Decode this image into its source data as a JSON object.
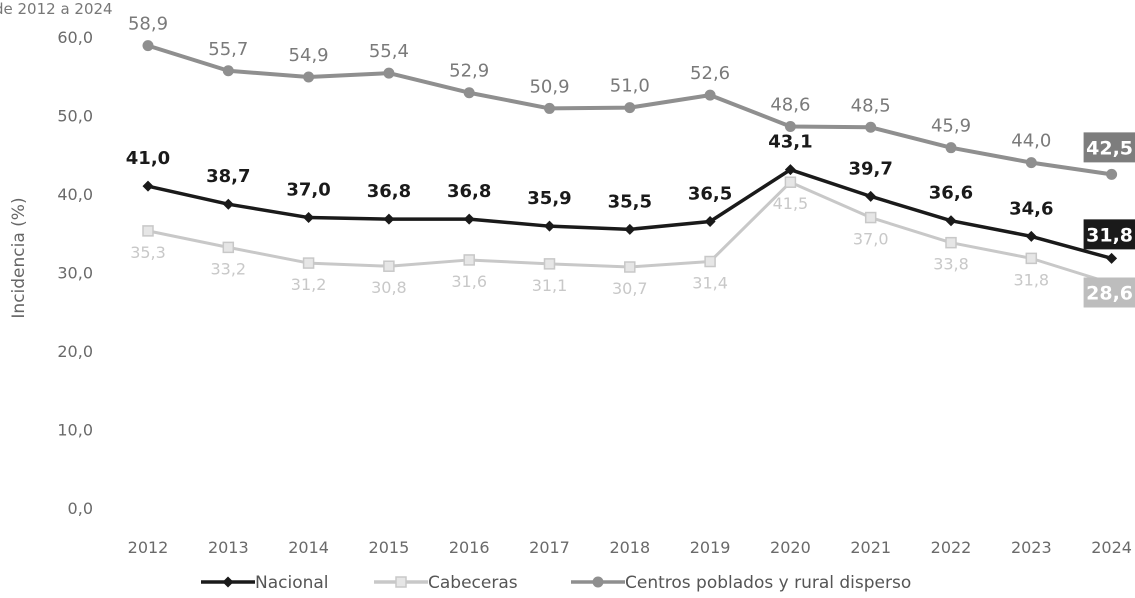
{
  "header": {
    "partial_text": "de 2012 a 2024"
  },
  "chart_data": {
    "type": "line",
    "ylabel": "Incidencia (%)",
    "xlabel": "",
    "ylim": [
      0,
      60
    ],
    "yticks": [
      "0,0",
      "10,0",
      "20,0",
      "30,0",
      "40,0",
      "50,0",
      "60,0"
    ],
    "categories": [
      "2012",
      "2013",
      "2014",
      "2015",
      "2016",
      "2017",
      "2018",
      "2019",
      "2020",
      "2021",
      "2022",
      "2023",
      "2024"
    ],
    "legend_position": "bottom",
    "grid": false,
    "series": [
      {
        "key": "nacional",
        "name": "Nacional",
        "color": "#1a1a1a",
        "marker": "diamond",
        "values": [
          41.0,
          38.7,
          37.0,
          36.8,
          36.8,
          35.9,
          35.5,
          36.5,
          43.1,
          39.7,
          36.6,
          34.6,
          31.8
        ],
        "labels": [
          "41,0",
          "38,7",
          "37,0",
          "36,8",
          "36,8",
          "35,9",
          "35,5",
          "36,5",
          "43,1",
          "39,7",
          "36,6",
          "34,6",
          "31,8"
        ]
      },
      {
        "key": "cabeceras",
        "name": "Cabeceras",
        "color": "#c8c8c8",
        "marker": "square",
        "values": [
          35.3,
          33.2,
          31.2,
          30.8,
          31.6,
          31.1,
          30.7,
          31.4,
          41.5,
          37.0,
          33.8,
          31.8,
          28.6
        ],
        "labels": [
          "35,3",
          "33,2",
          "31,2",
          "30,8",
          "31,6",
          "31,1",
          "30,7",
          "31,4",
          "41,5",
          "37,0",
          "33,8",
          "31,8",
          "28,6"
        ]
      },
      {
        "key": "centros",
        "name": "Centros poblados y rural disperso",
        "color": "#8f8f8f",
        "marker": "circle",
        "values": [
          58.9,
          55.7,
          54.9,
          55.4,
          52.9,
          50.9,
          51.0,
          52.6,
          48.6,
          48.5,
          45.9,
          44.0,
          42.5
        ],
        "labels": [
          "58,9",
          "55,7",
          "54,9",
          "55,4",
          "52,9",
          "50,9",
          "51,0",
          "52,6",
          "48,6",
          "48,5",
          "45,9",
          "44,0",
          "42,5"
        ]
      }
    ]
  }
}
